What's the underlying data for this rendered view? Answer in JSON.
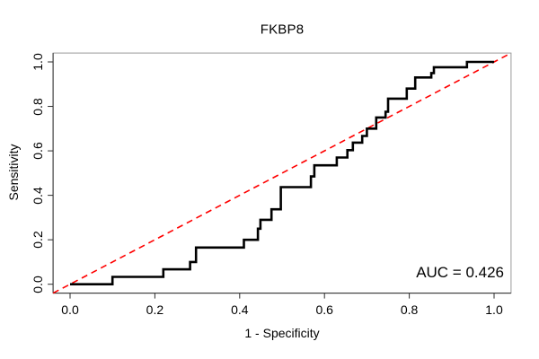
{
  "title": "FKBP8",
  "axes": {
    "x_label": "1 - Specificity",
    "y_label": "Sensitivity",
    "x_ticks": [
      "0.0",
      "0.2",
      "0.4",
      "0.6",
      "0.8",
      "1.0"
    ],
    "y_ticks": [
      "0.0",
      "0.2",
      "0.4",
      "0.6",
      "0.8",
      "1.0"
    ]
  },
  "annotation": {
    "auc_text": "AUC = 0.426"
  },
  "colors": {
    "curve": "#000000",
    "diagonal": "#ff0000",
    "box": "#9a9a9a",
    "axis": "#2b2b2b",
    "text": "#000000",
    "background": "#ffffff"
  },
  "chart_data": {
    "type": "line",
    "subtype": "roc-step-curve",
    "title": "FKBP8",
    "xlabel": "1 - Specificity",
    "ylabel": "Sensitivity",
    "xlim": [
      0,
      1
    ],
    "ylim": [
      0,
      1
    ],
    "x_tick_values": [
      0.0,
      0.2,
      0.4,
      0.6,
      0.8,
      1.0
    ],
    "y_tick_values": [
      0.0,
      0.2,
      0.4,
      0.6,
      0.8,
      1.0
    ],
    "grid": false,
    "auc": 0.426,
    "series": [
      {
        "name": "ROC curve",
        "style": "solid",
        "color": "#000000",
        "points": [
          [
            0.0,
            0.0
          ],
          [
            0.1,
            0.0
          ],
          [
            0.1,
            0.033
          ],
          [
            0.22,
            0.033
          ],
          [
            0.22,
            0.067
          ],
          [
            0.283,
            0.067
          ],
          [
            0.283,
            0.1
          ],
          [
            0.297,
            0.1
          ],
          [
            0.297,
            0.165
          ],
          [
            0.41,
            0.165
          ],
          [
            0.41,
            0.2
          ],
          [
            0.443,
            0.2
          ],
          [
            0.443,
            0.25
          ],
          [
            0.449,
            0.25
          ],
          [
            0.449,
            0.29
          ],
          [
            0.475,
            0.29
          ],
          [
            0.475,
            0.337
          ],
          [
            0.497,
            0.337
          ],
          [
            0.497,
            0.437
          ],
          [
            0.568,
            0.437
          ],
          [
            0.568,
            0.485
          ],
          [
            0.576,
            0.485
          ],
          [
            0.576,
            0.535
          ],
          [
            0.629,
            0.535
          ],
          [
            0.629,
            0.57
          ],
          [
            0.654,
            0.57
          ],
          [
            0.654,
            0.603
          ],
          [
            0.667,
            0.603
          ],
          [
            0.667,
            0.637
          ],
          [
            0.689,
            0.637
          ],
          [
            0.689,
            0.667
          ],
          [
            0.7,
            0.667
          ],
          [
            0.7,
            0.7
          ],
          [
            0.722,
            0.7
          ],
          [
            0.722,
            0.75
          ],
          [
            0.744,
            0.75
          ],
          [
            0.744,
            0.776
          ],
          [
            0.75,
            0.776
          ],
          [
            0.75,
            0.835
          ],
          [
            0.794,
            0.835
          ],
          [
            0.794,
            0.88
          ],
          [
            0.814,
            0.88
          ],
          [
            0.814,
            0.93
          ],
          [
            0.852,
            0.93
          ],
          [
            0.852,
            0.95
          ],
          [
            0.858,
            0.95
          ],
          [
            0.858,
            0.976
          ],
          [
            0.936,
            0.976
          ],
          [
            0.936,
            1.0
          ],
          [
            1.0,
            1.0
          ]
        ]
      },
      {
        "name": "chance diagonal",
        "style": "dashed",
        "color": "#ff0000",
        "points": [
          [
            0,
            0
          ],
          [
            1,
            1
          ]
        ]
      }
    ]
  }
}
